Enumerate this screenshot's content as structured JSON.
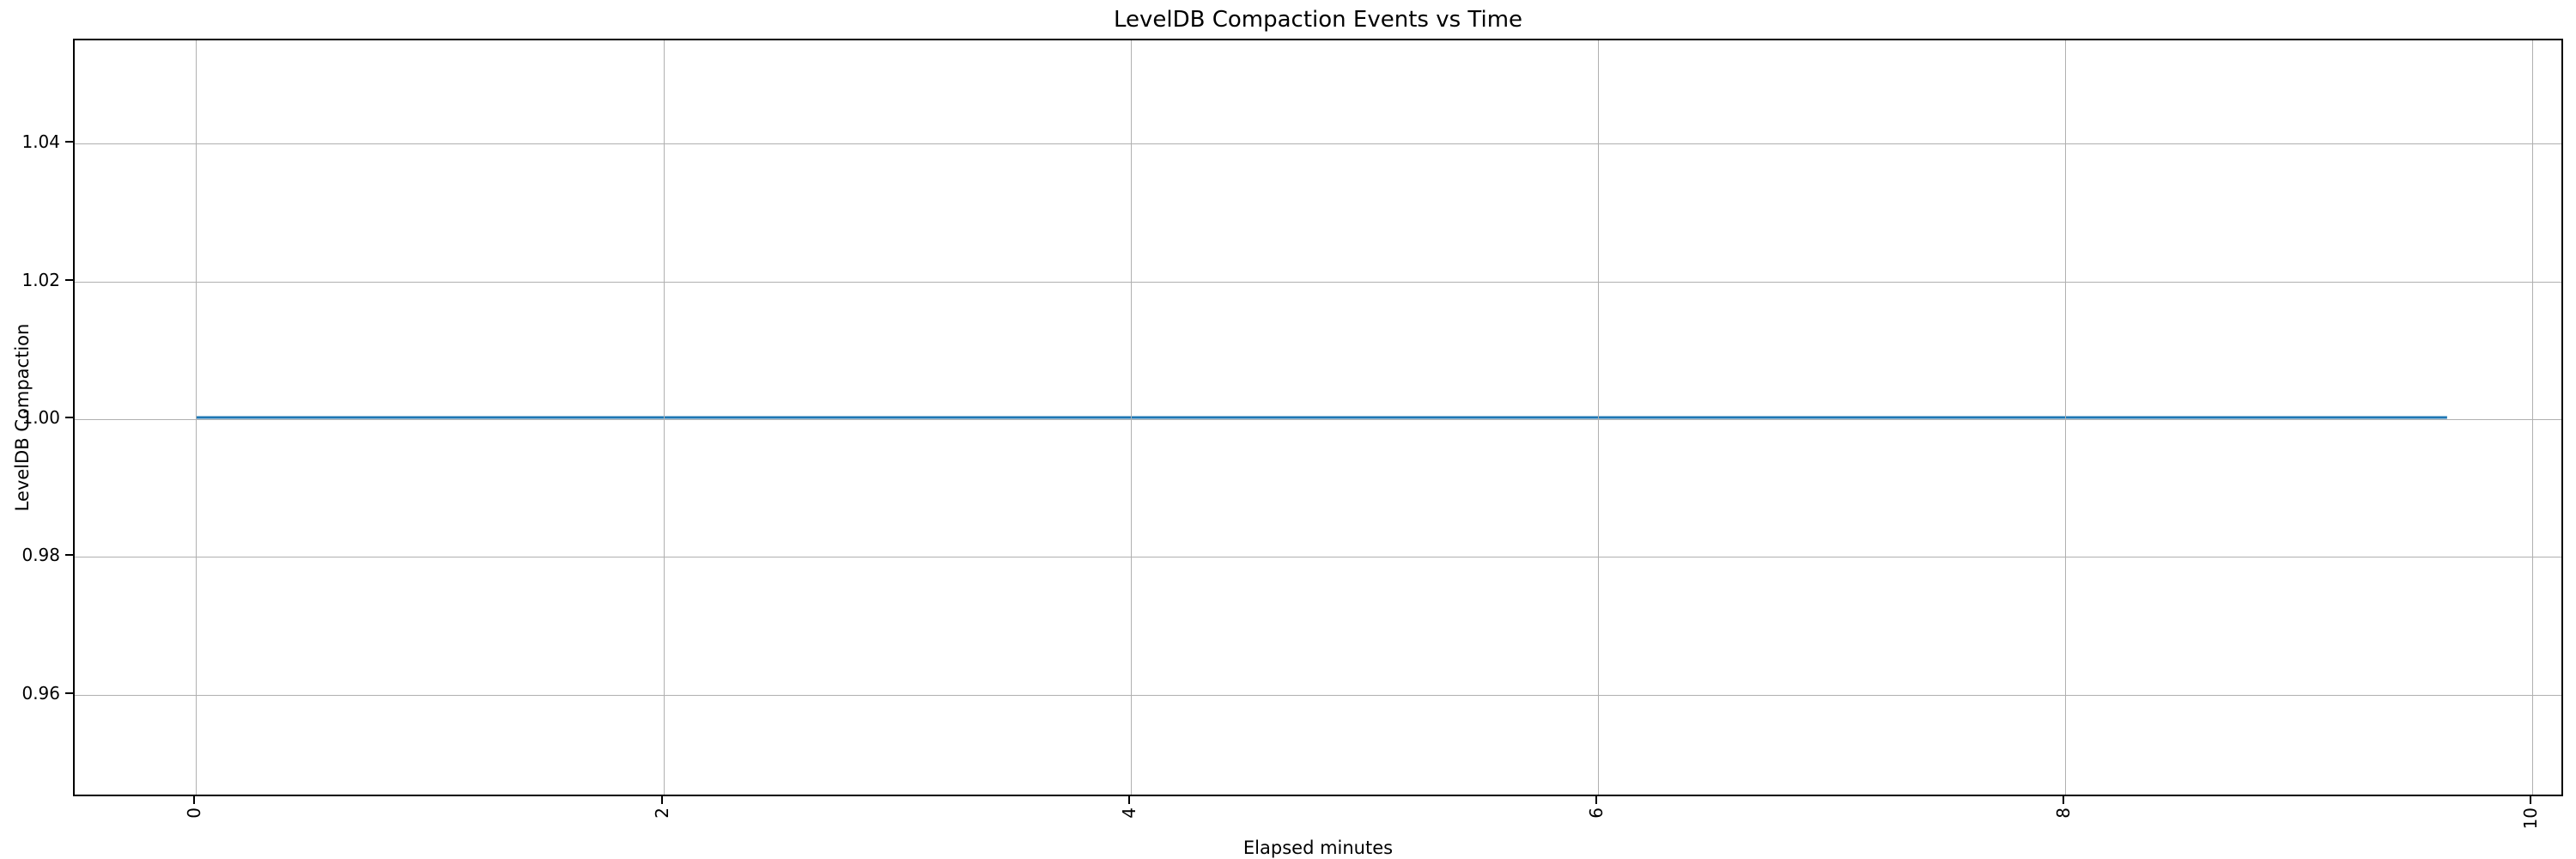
{
  "chart_data": {
    "type": "line",
    "title": "LevelDB Compaction Events vs Time",
    "xlabel": "Elapsed minutes",
    "ylabel": "LevelDB Compaction",
    "x": [
      0.0,
      9.65
    ],
    "y": [
      1.0,
      1.0
    ],
    "series": [
      {
        "name": "LevelDB Compaction",
        "x": [
          0.0,
          9.65
        ],
        "values": [
          1.0,
          1.0
        ]
      }
    ],
    "xlim": [
      -0.52,
      10.14
    ],
    "ylim": [
      0.945,
      1.055
    ],
    "xticks": [
      0,
      2,
      4,
      6,
      8,
      10
    ],
    "xtick_labels": [
      "0",
      "2",
      "4",
      "6",
      "8",
      "10"
    ],
    "xtick_rotation": 90,
    "yticks": [
      0.96,
      0.98,
      1.0,
      1.02,
      1.04
    ],
    "ytick_labels": [
      "0.96",
      "0.98",
      "1.00",
      "1.02",
      "1.04"
    ],
    "grid": true,
    "legend": "none",
    "line_color": "#1f77b4",
    "grid_color": "#b0b0b0",
    "spine_color": "#000000",
    "background_color": "#ffffff"
  }
}
